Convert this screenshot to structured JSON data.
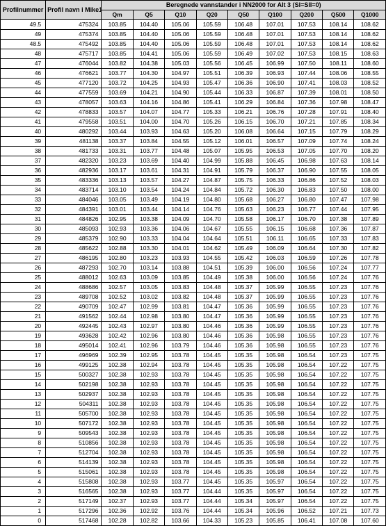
{
  "headers": {
    "profilnummer": "Profilnummer",
    "profilnavn": "Profil navn i Mike11 (avstand fra Aursunden)",
    "beregnede": "Beregnede vannstander i NN2000 for Alt 3 (SI=SII=0)",
    "q": [
      "Qm",
      "Q5",
      "Q10",
      "Q20",
      "Q50",
      "Q100",
      "Q200",
      "Q500",
      "Q1000"
    ]
  },
  "rows": [
    {
      "p": "49.5",
      "n": "475324",
      "v": [
        "103.85",
        "104.40",
        "105.06",
        "105.59",
        "106.48",
        "107.01",
        "107.53",
        "108.14",
        "108.62"
      ]
    },
    {
      "p": "49",
      "n": "475374",
      "v": [
        "103.85",
        "104.40",
        "105.06",
        "105.59",
        "106.48",
        "107.01",
        "107.53",
        "108.14",
        "108.62"
      ]
    },
    {
      "p": "48.5",
      "n": "475492",
      "v": [
        "103.85",
        "104.40",
        "105.06",
        "105.59",
        "106.48",
        "107.01",
        "107.53",
        "108.14",
        "108.62"
      ]
    },
    {
      "p": "48",
      "n": "475717",
      "v": [
        "103.85",
        "104.41",
        "105.06",
        "105.59",
        "106.49",
        "107.02",
        "107.53",
        "108.15",
        "108.63"
      ]
    },
    {
      "p": "47",
      "n": "476044",
      "v": [
        "103.82",
        "104.38",
        "105.03",
        "105.56",
        "106.45",
        "106.99",
        "107.50",
        "108.11",
        "108.60"
      ]
    },
    {
      "p": "46",
      "n": "476621",
      "v": [
        "103.77",
        "104.30",
        "104.97",
        "105.51",
        "106.39",
        "106.93",
        "107.44",
        "108.06",
        "108.55"
      ]
    },
    {
      "p": "45",
      "n": "477120",
      "v": [
        "103.72",
        "104.25",
        "104.93",
        "105.47",
        "106.36",
        "106.90",
        "107.41",
        "108.03",
        "108.52"
      ]
    },
    {
      "p": "44",
      "n": "477559",
      "v": [
        "103.69",
        "104.21",
        "104.90",
        "105.44",
        "106.33",
        "106.87",
        "107.39",
        "108.01",
        "108.50"
      ]
    },
    {
      "p": "43",
      "n": "478057",
      "v": [
        "103.63",
        "104.16",
        "104.86",
        "105.41",
        "106.29",
        "106.84",
        "107.36",
        "107.98",
        "108.47"
      ]
    },
    {
      "p": "42",
      "n": "478833",
      "v": [
        "103.57",
        "104.07",
        "104.77",
        "105.33",
        "106.21",
        "106.76",
        "107.28",
        "107.91",
        "108.40"
      ]
    },
    {
      "p": "41",
      "n": "479558",
      "v": [
        "103.51",
        "104.00",
        "104.70",
        "105.26",
        "106.15",
        "106.70",
        "107.21",
        "107.85",
        "108.34"
      ]
    },
    {
      "p": "40",
      "n": "480292",
      "v": [
        "103.44",
        "103.93",
        "104.63",
        "105.20",
        "106.08",
        "106.64",
        "107.15",
        "107.79",
        "108.29"
      ]
    },
    {
      "p": "39",
      "n": "481138",
      "v": [
        "103.37",
        "103.84",
        "104.55",
        "105.12",
        "106.01",
        "106.57",
        "107.09",
        "107.74",
        "108.24"
      ]
    },
    {
      "p": "38",
      "n": "481733",
      "v": [
        "103.31",
        "103.77",
        "104.48",
        "105.07",
        "105.95",
        "106.53",
        "107.05",
        "107.70",
        "108.20"
      ]
    },
    {
      "p": "37",
      "n": "482320",
      "v": [
        "103.23",
        "103.69",
        "104.40",
        "104.99",
        "105.88",
        "106.45",
        "106.98",
        "107.63",
        "108.14"
      ]
    },
    {
      "p": "36",
      "n": "482936",
      "v": [
        "103.17",
        "103.61",
        "104.31",
        "104.91",
        "105.79",
        "106.37",
        "106.90",
        "107.55",
        "108.05"
      ]
    },
    {
      "p": "35",
      "n": "483336",
      "v": [
        "103.13",
        "103.57",
        "104.27",
        "104.87",
        "105.75",
        "106.33",
        "106.86",
        "107.52",
        "108.03"
      ]
    },
    {
      "p": "34",
      "n": "483714",
      "v": [
        "103.10",
        "103.54",
        "104.24",
        "104.84",
        "105.72",
        "106.30",
        "106.83",
        "107.50",
        "108.00"
      ]
    },
    {
      "p": "33",
      "n": "484046",
      "v": [
        "103.05",
        "103.49",
        "104.19",
        "104.80",
        "105.68",
        "106.27",
        "106.80",
        "107.47",
        "107.98"
      ]
    },
    {
      "p": "32",
      "n": "484391",
      "v": [
        "103.01",
        "103.44",
        "104.14",
        "104.76",
        "105.63",
        "106.23",
        "106.77",
        "107.44",
        "107.95"
      ]
    },
    {
      "p": "31",
      "n": "484826",
      "v": [
        "102.95",
        "103.38",
        "104.09",
        "104.70",
        "105.58",
        "106.17",
        "106.70",
        "107.38",
        "107.89"
      ]
    },
    {
      "p": "30",
      "n": "485093",
      "v": [
        "102.93",
        "103.36",
        "104.06",
        "104.67",
        "105.55",
        "106.15",
        "106.68",
        "107.36",
        "107.87"
      ]
    },
    {
      "p": "29",
      "n": "485379",
      "v": [
        "102.90",
        "103.33",
        "104.04",
        "104.64",
        "105.51",
        "106.11",
        "106.65",
        "107.33",
        "107.83"
      ]
    },
    {
      "p": "28",
      "n": "485622",
      "v": [
        "102.88",
        "103.30",
        "104.01",
        "104.62",
        "105.49",
        "106.09",
        "106.64",
        "107.30",
        "107.82"
      ]
    },
    {
      "p": "27",
      "n": "486195",
      "v": [
        "102.80",
        "103.23",
        "103.93",
        "104.55",
        "105.42",
        "106.03",
        "106.59",
        "107.26",
        "107.78"
      ]
    },
    {
      "p": "26",
      "n": "487293",
      "v": [
        "102.70",
        "103.14",
        "103.88",
        "104.51",
        "105.39",
        "106.00",
        "106.56",
        "107.24",
        "107.77"
      ]
    },
    {
      "p": "25",
      "n": "488012",
      "v": [
        "102.63",
        "103.09",
        "103.85",
        "104.49",
        "105.38",
        "106.00",
        "106.56",
        "107.24",
        "107.76"
      ]
    },
    {
      "p": "24",
      "n": "488686",
      "v": [
        "102.57",
        "103.05",
        "103.83",
        "104.48",
        "105.37",
        "105.99",
        "106.55",
        "107.23",
        "107.76"
      ]
    },
    {
      "p": "23",
      "n": "489708",
      "v": [
        "102.52",
        "103.02",
        "103.82",
        "104.48",
        "105.37",
        "105.99",
        "106.55",
        "107.23",
        "107.76"
      ]
    },
    {
      "p": "22",
      "n": "490709",
      "v": [
        "102.47",
        "102.99",
        "103.81",
        "104.47",
        "105.36",
        "105.99",
        "106.55",
        "107.23",
        "107.76"
      ]
    },
    {
      "p": "21",
      "n": "491562",
      "v": [
        "102.44",
        "102.98",
        "103.80",
        "104.47",
        "105.36",
        "105.99",
        "106.55",
        "107.23",
        "107.76"
      ]
    },
    {
      "p": "20",
      "n": "492445",
      "v": [
        "102.43",
        "102.97",
        "103.80",
        "104.46",
        "105.36",
        "105.99",
        "106.55",
        "107.23",
        "107.76"
      ]
    },
    {
      "p": "19",
      "n": "493628",
      "v": [
        "102.42",
        "102.96",
        "103.80",
        "104.46",
        "105.36",
        "105.98",
        "106.55",
        "107.23",
        "107.76"
      ]
    },
    {
      "p": "18",
      "n": "495014",
      "v": [
        "102.41",
        "102.96",
        "103.79",
        "104.46",
        "105.36",
        "105.98",
        "106.55",
        "107.23",
        "107.76"
      ]
    },
    {
      "p": "17",
      "n": "496969",
      "v": [
        "102.39",
        "102.95",
        "103.78",
        "104.45",
        "105.35",
        "105.98",
        "106.54",
        "107.23",
        "107.75"
      ]
    },
    {
      "p": "16",
      "n": "499125",
      "v": [
        "102.38",
        "102.94",
        "103.78",
        "104.45",
        "105.35",
        "105.98",
        "106.54",
        "107.22",
        "107.75"
      ]
    },
    {
      "p": "15",
      "n": "500327",
      "v": [
        "102.38",
        "102.93",
        "103.78",
        "104.45",
        "105.35",
        "105.98",
        "106.54",
        "107.22",
        "107.75"
      ]
    },
    {
      "p": "14",
      "n": "502198",
      "v": [
        "102.38",
        "102.93",
        "103.78",
        "104.45",
        "105.35",
        "105.98",
        "106.54",
        "107.22",
        "107.75"
      ]
    },
    {
      "p": "13",
      "n": "502937",
      "v": [
        "102.38",
        "102.93",
        "103.78",
        "104.45",
        "105.35",
        "105.98",
        "106.54",
        "107.22",
        "107.75"
      ]
    },
    {
      "p": "12",
      "n": "504311",
      "v": [
        "102.38",
        "102.93",
        "103.78",
        "104.45",
        "105.35",
        "105.98",
        "106.54",
        "107.22",
        "107.75"
      ]
    },
    {
      "p": "11",
      "n": "505700",
      "v": [
        "102.38",
        "102.93",
        "103.78",
        "104.45",
        "105.35",
        "105.98",
        "106.54",
        "107.22",
        "107.75"
      ]
    },
    {
      "p": "10",
      "n": "507172",
      "v": [
        "102.38",
        "102.93",
        "103.78",
        "104.45",
        "105.35",
        "105.98",
        "106.54",
        "107.22",
        "107.75"
      ]
    },
    {
      "p": "9",
      "n": "509543",
      "v": [
        "102.38",
        "102.93",
        "103.78",
        "104.45",
        "105.35",
        "105.98",
        "106.54",
        "107.22",
        "107.75"
      ]
    },
    {
      "p": "8",
      "n": "510856",
      "v": [
        "102.38",
        "102.93",
        "103.78",
        "104.45",
        "105.35",
        "105.98",
        "106.54",
        "107.22",
        "107.75"
      ]
    },
    {
      "p": "7",
      "n": "512704",
      "v": [
        "102.38",
        "102.93",
        "103.78",
        "104.45",
        "105.35",
        "105.98",
        "106.54",
        "107.22",
        "107.75"
      ]
    },
    {
      "p": "6",
      "n": "514139",
      "v": [
        "102.38",
        "102.93",
        "103.78",
        "104.45",
        "105.35",
        "105.98",
        "106.54",
        "107.22",
        "107.75"
      ]
    },
    {
      "p": "5",
      "n": "515061",
      "v": [
        "102.38",
        "102.93",
        "103.78",
        "104.45",
        "105.35",
        "105.98",
        "106.54",
        "107.22",
        "107.75"
      ]
    },
    {
      "p": "4",
      "n": "515808",
      "v": [
        "102.38",
        "102.93",
        "103.77",
        "104.45",
        "105.35",
        "105.97",
        "106.54",
        "107.22",
        "107.75"
      ]
    },
    {
      "p": "3",
      "n": "516565",
      "v": [
        "102.38",
        "102.93",
        "103.77",
        "104.44",
        "105.35",
        "105.97",
        "106.54",
        "107.22",
        "107.75"
      ]
    },
    {
      "p": "2",
      "n": "517149",
      "v": [
        "102.37",
        "102.93",
        "103.77",
        "104.44",
        "105.34",
        "105.97",
        "106.54",
        "107.22",
        "107.75"
      ]
    },
    {
      "p": "1",
      "n": "517296",
      "v": [
        "102.36",
        "102.92",
        "103.76",
        "104.44",
        "105.34",
        "105.96",
        "106.52",
        "107.21",
        "107.73"
      ]
    },
    {
      "p": "0",
      "n": "517468",
      "v": [
        "102.28",
        "102.82",
        "103.66",
        "104.33",
        "105.23",
        "105.85",
        "106.41",
        "107.08",
        "107.60"
      ]
    }
  ]
}
